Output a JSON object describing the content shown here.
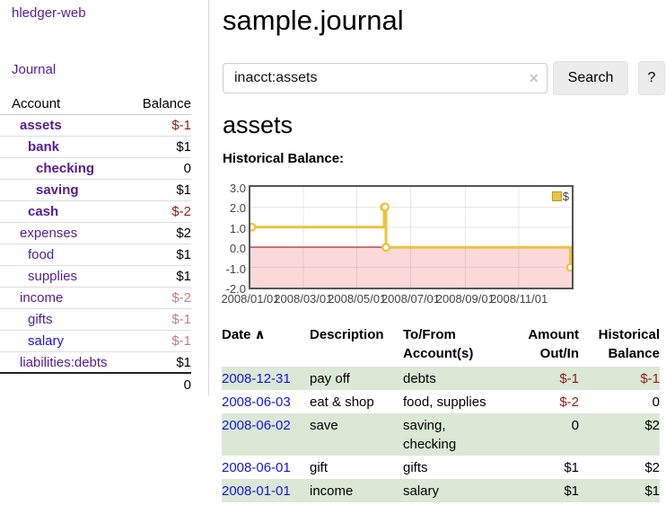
{
  "app": {
    "title": "hledger-web"
  },
  "sidebar": {
    "journal_link": "Journal",
    "accounts": {
      "header_account": "Account",
      "header_balance": "Balance",
      "rows": [
        {
          "name": "assets",
          "balance": "$-1"
        },
        {
          "name": "bank",
          "balance": "$1"
        },
        {
          "name": "checking",
          "balance": "0"
        },
        {
          "name": "saving",
          "balance": "$1"
        },
        {
          "name": "cash",
          "balance": "$-2"
        },
        {
          "name": "expenses",
          "balance": "$2"
        },
        {
          "name": "food",
          "balance": "$1"
        },
        {
          "name": "supplies",
          "balance": "$1"
        },
        {
          "name": "income",
          "balance": "$-2"
        },
        {
          "name": "gifts",
          "balance": "$-1"
        },
        {
          "name": "salary",
          "balance": "$-1"
        },
        {
          "name": "liabilities:debts",
          "balance": "$1"
        }
      ],
      "total": "0"
    }
  },
  "main": {
    "title": "sample.journal",
    "search": {
      "value": "inacct:assets",
      "clear_icon": "×",
      "button": "Search",
      "help": "?"
    },
    "account_heading": "assets",
    "chart_heading": "Historical Balance:"
  },
  "chart_data": {
    "type": "line",
    "title": "Historical Balance",
    "series": [
      {
        "name": "$",
        "color": "#edc240",
        "step": true,
        "points": [
          {
            "date": "2008-01-01",
            "value": 1
          },
          {
            "date": "2008-06-01",
            "value": 2
          },
          {
            "date": "2008-06-02",
            "value": 2
          },
          {
            "date": "2008-06-03",
            "value": 0
          },
          {
            "date": "2008-12-31",
            "value": -1
          }
        ]
      }
    ],
    "x_tick_labels": [
      "2008/01/01",
      "2008/03/01",
      "2008/05/01",
      "2008/07/01",
      "2008/09/01",
      "2008/11/01"
    ],
    "y_tick_labels": [
      "3.0",
      "2.0",
      "1.0",
      "0.0",
      "-1.0",
      "-2.0"
    ],
    "ylim": [
      -2,
      3
    ],
    "legend_position": "top-right",
    "grid": true,
    "grid_color": "rgba(0,0,0,0.09)",
    "negative_region_shaded": true,
    "negative_region_color": "#fcd9d9",
    "zero_line_color": "#8b0000",
    "border_color": "#545454"
  },
  "register": {
    "sort_icon": "∧",
    "headers": {
      "date": "Date",
      "description": "Description",
      "tofrom": "To/From Account(s)",
      "amount": "Amount Out/In",
      "balance": "Historical Balance"
    },
    "rows": [
      {
        "date": "2008-12-31",
        "description": "pay off",
        "accounts": "debts",
        "amount": "$-1",
        "balance": "$-1"
      },
      {
        "date": "2008-06-03",
        "description": "eat & shop",
        "accounts": "food, supplies",
        "amount": "$-2",
        "balance": "0"
      },
      {
        "date": "2008-06-02",
        "description": "save",
        "accounts": "saving, checking",
        "amount": "0",
        "balance": "$2"
      },
      {
        "date": "2008-06-01",
        "description": "gift",
        "accounts": "gifts",
        "amount": "$1",
        "balance": "$2"
      },
      {
        "date": "2008-01-01",
        "description": "income",
        "accounts": "salary",
        "amount": "$1",
        "balance": "$1"
      }
    ]
  },
  "colors": {
    "link_purple": "#551b92",
    "link_blue": "#1414dd",
    "negative_red": "#8f1d13",
    "negative_faded_red": "#c37f7f",
    "row_stripe_green": "#dbe8d6",
    "series_gold": "#edc240",
    "chart_negative_pink": "#fcd9d9",
    "chart_zero_line": "#8b0000",
    "chart_border": "#545454",
    "button_bg": "#ececec",
    "input_border": "#cccccc",
    "clear_icon": "#cdc5da"
  }
}
